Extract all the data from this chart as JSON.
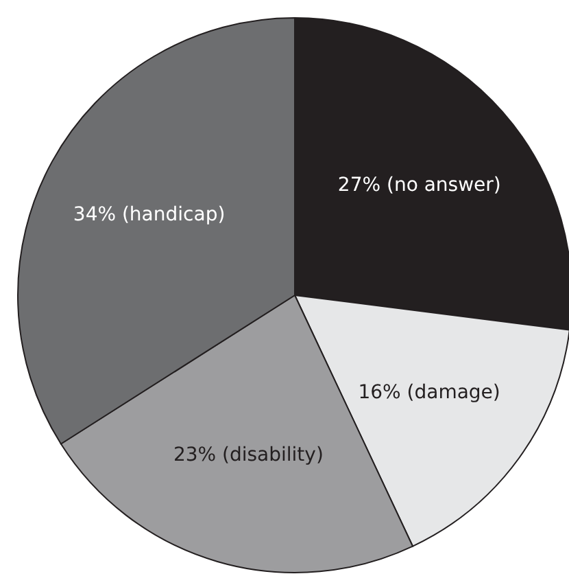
{
  "chart_data": {
    "type": "pie",
    "categories": [
      "27% (no answer)",
      "16% (damage)",
      "23% (disability)",
      "34% (handicap)"
    ],
    "values": [
      27,
      16,
      23,
      34
    ],
    "colors": [
      "#231f20",
      "#e6e7e8",
      "#9d9d9f",
      "#6d6e70"
    ]
  }
}
